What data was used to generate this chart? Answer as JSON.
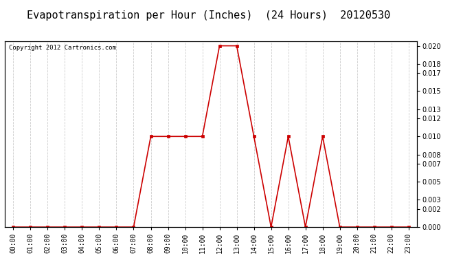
{
  "title": "Evapotranspiration per Hour (Inches)  (24 Hours)  20120530",
  "copyright": "Copyright 2012 Cartronics.com",
  "hours": [
    0,
    1,
    2,
    3,
    4,
    5,
    6,
    7,
    8,
    9,
    10,
    11,
    12,
    13,
    14,
    15,
    16,
    17,
    18,
    19,
    20,
    21,
    22,
    23
  ],
  "values": [
    0.0,
    0.0,
    0.0,
    0.0,
    0.0,
    0.0,
    0.0,
    0.0,
    0.01,
    0.01,
    0.01,
    0.01,
    0.02,
    0.02,
    0.01,
    0.0,
    0.01,
    0.0,
    0.01,
    0.0,
    0.0,
    0.0,
    0.0,
    0.0
  ],
  "line_color": "#cc0000",
  "marker": "s",
  "marker_size": 3,
  "line_width": 1.2,
  "ylim": [
    0.0,
    0.0205
  ],
  "yticks": [
    0.0,
    0.002,
    0.003,
    0.005,
    0.007,
    0.008,
    0.01,
    0.012,
    0.013,
    0.015,
    0.017,
    0.018,
    0.02
  ],
  "background_color": "#ffffff",
  "plot_bg_color": "#ffffff",
  "grid_color": "#cccccc",
  "title_fontsize": 11,
  "copyright_fontsize": 6.5,
  "tick_fontsize": 7,
  "border_color": "#000000"
}
